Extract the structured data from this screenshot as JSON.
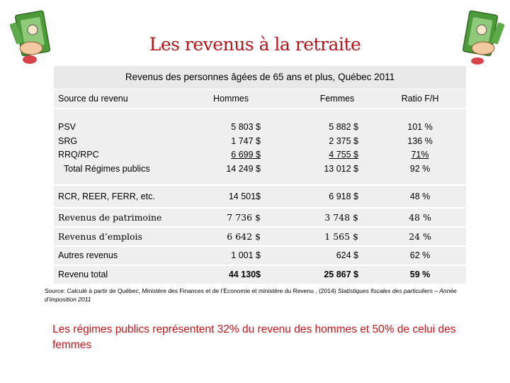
{
  "title": "Les revenus à la retraite",
  "table": {
    "caption": "Revenus des personnes âgées de 65 ans et plus, Québec 2011",
    "headers": [
      "Source du revenu",
      "Hommes",
      "Femmes",
      "Ratio F/H"
    ],
    "public_block": {
      "labels": [
        "PSV",
        "SRG",
        "RRQ/RPC",
        "Total Régimes publics"
      ],
      "hommes": [
        "5 803 $",
        "1 747 $",
        "6 699 $",
        "14 249 $"
      ],
      "femmes": [
        "5 882 $",
        "2 375 $",
        "4 755 $",
        "13 012 $"
      ],
      "ratio": [
        "101 %",
        "136 %",
        "71%",
        "92 %"
      ]
    },
    "rows": [
      {
        "label": "RCR, REER, FERR, etc.",
        "hommes": "14 501$",
        "femmes": "6 918 $",
        "ratio": "48 %"
      },
      {
        "label": "Revenus de patrimoine",
        "hommes": "7 736 $",
        "femmes": "3 748 $",
        "ratio": "48 %"
      },
      {
        "label": "Revenus d’emplois",
        "hommes": "6 642 $",
        "femmes": "1 565 $",
        "ratio": "24 %"
      },
      {
        "label": "Autres revenus",
        "hommes": "1 001 $",
        "femmes": "624 $",
        "ratio": "62 %"
      },
      {
        "label": "Revenu total",
        "hommes": "44 130$",
        "femmes": "25 867 $",
        "ratio": "59 %"
      }
    ]
  },
  "source": {
    "prefix": "Source: Calculé à partir de Québec, Ministère des Finances et de l’Économie et ministère du Revenu , (2014) ",
    "italic": "Statistiques fiscales des particuliers – Année d’imposition 2011"
  },
  "conclusion": "Les régimes publics représentent 32% du revenu des hommes et 50% de celui des femmes",
  "decorations": {
    "left": "money-cartoon-icon",
    "right": "money-cartoon-icon"
  },
  "colors": {
    "title": "#b6141b",
    "conclusion": "#c8141b",
    "table_bg": "#efefef",
    "money": "#3a8a2a"
  }
}
